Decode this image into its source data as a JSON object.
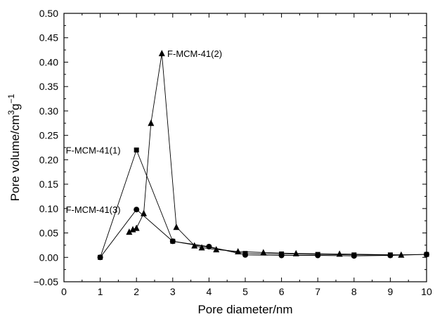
{
  "chart_data": {
    "type": "line",
    "xlabel": "Pore diameter/nm",
    "ylabel_parts": [
      "Pore volume/cm",
      "3",
      "g",
      "−1"
    ],
    "xlim": [
      0,
      10
    ],
    "ylim": [
      -0.05,
      0.5
    ],
    "x_ticks": [
      0,
      1,
      2,
      3,
      4,
      5,
      6,
      7,
      8,
      9,
      10
    ],
    "y_ticks": [
      -0.05,
      0.0,
      0.05,
      0.1,
      0.15,
      0.2,
      0.25,
      0.3,
      0.35,
      0.4,
      0.45,
      0.5
    ],
    "x_tick_labels": [
      "0",
      "1",
      "2",
      "3",
      "4",
      "5",
      "6",
      "7",
      "8",
      "9",
      "10"
    ],
    "y_tick_labels": [
      "−0.05",
      "0.00",
      "0.05",
      "0.10",
      "0.15",
      "0.20",
      "0.25",
      "0.30",
      "0.35",
      "0.40",
      "0.45",
      "0.50"
    ],
    "grid": false,
    "series": [
      {
        "name": "F-MCM-41(1)",
        "marker": "square",
        "x": [
          1.0,
          2.0,
          3.0,
          5.0,
          6.0,
          7.0,
          8.0,
          9.0,
          10.0
        ],
        "y": [
          0.0,
          0.22,
          0.033,
          0.008,
          0.007,
          0.006,
          0.005,
          0.005,
          0.006
        ]
      },
      {
        "name": "F-MCM-41(2)",
        "marker": "triangle",
        "x": [
          1.8,
          1.9,
          2.0,
          2.2,
          2.4,
          2.7,
          3.1,
          3.6,
          3.8,
          4.2,
          4.8,
          5.5,
          6.4,
          7.6,
          9.3
        ],
        "y": [
          0.052,
          0.057,
          0.06,
          0.09,
          0.275,
          0.418,
          0.062,
          0.024,
          0.02,
          0.016,
          0.012,
          0.01,
          0.008,
          0.007,
          0.005
        ]
      },
      {
        "name": "F-MCM-41(3)",
        "marker": "circle",
        "x": [
          1.0,
          2.0,
          3.0,
          4.0,
          5.0,
          6.0,
          7.0,
          8.0,
          9.0,
          10.0
        ],
        "y": [
          0.0,
          0.098,
          0.033,
          0.022,
          0.005,
          0.004,
          0.004,
          0.003,
          0.004,
          0.006
        ]
      }
    ],
    "labels": [
      {
        "text": "F-MCM-41(2)",
        "x": 2.85,
        "y": 0.418
      },
      {
        "text": "F-MCM-41(1)",
        "x": 0.05,
        "y": 0.22
      },
      {
        "text": "F-MCM-41(3)",
        "x": 0.05,
        "y": 0.098
      }
    ]
  }
}
